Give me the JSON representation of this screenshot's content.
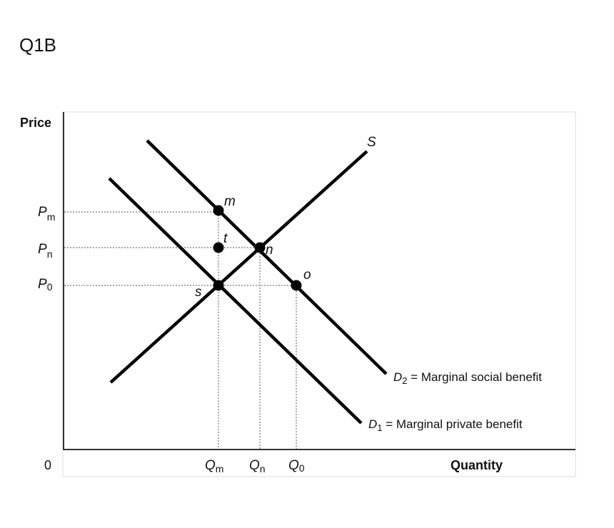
{
  "heading": "Q1B",
  "axes": {
    "y_label": "Price",
    "x_label": "Quantity",
    "origin_label": "0"
  },
  "price_labels": {
    "pm": {
      "main": "P",
      "sub": "m"
    },
    "pn": {
      "main": "P",
      "sub": "n"
    },
    "p0": {
      "main": "P",
      "sub": "0"
    }
  },
  "quantity_labels": {
    "qm": {
      "main": "Q",
      "sub": "m"
    },
    "qn": {
      "main": "Q",
      "sub": "n"
    },
    "q0": {
      "main": "Q",
      "sub": "0"
    }
  },
  "curves": {
    "supply": {
      "label": "S"
    },
    "d2": {
      "main": "D",
      "sub": "2",
      "rest": " = Marginal social benefit"
    },
    "d1": {
      "main": "D",
      "sub": "1",
      "rest": " = Marginal private benefit"
    }
  },
  "points": {
    "m": "m",
    "t": "t",
    "n": "n",
    "o": "o",
    "s": "s"
  },
  "colors": {
    "line": "#000000",
    "axis": "#333333",
    "guide": "#888888"
  }
}
